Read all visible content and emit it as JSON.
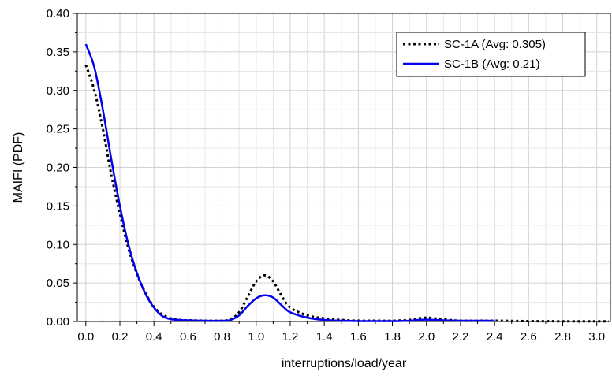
{
  "chart_data": {
    "type": "line",
    "title": "",
    "xlabel": "interruptions/load/year",
    "ylabel": "MAIFI (PDF)",
    "xlim": [
      -0.05,
      3.08
    ],
    "ylim": [
      0,
      0.4
    ],
    "grid": true,
    "legend_position": "top-right",
    "x_ticks": [
      "0.0",
      "0.2",
      "0.4",
      "0.6",
      "0.8",
      "1.0",
      "1.2",
      "1.4",
      "1.6",
      "1.8",
      "2.0",
      "2.2",
      "2.4",
      "2.6",
      "2.8",
      "3.0"
    ],
    "y_ticks": [
      "0.00",
      "0.05",
      "0.10",
      "0.15",
      "0.20",
      "0.25",
      "0.30",
      "0.35",
      "0.40"
    ],
    "series": [
      {
        "name": "SC-1A (Avg: 0.305)",
        "color": "#000000",
        "style": "dotted",
        "x": [
          0.0,
          0.05,
          0.1,
          0.15,
          0.2,
          0.25,
          0.3,
          0.35,
          0.4,
          0.45,
          0.5,
          0.55,
          0.6,
          0.7,
          0.8,
          0.85,
          0.9,
          0.95,
          1.0,
          1.05,
          1.1,
          1.15,
          1.2,
          1.3,
          1.4,
          1.5,
          1.6,
          1.7,
          1.8,
          1.9,
          1.95,
          2.0,
          2.05,
          2.1,
          2.2,
          2.4,
          2.6,
          2.8,
          3.0,
          3.07
        ],
        "y": [
          0.333,
          0.3,
          0.25,
          0.19,
          0.14,
          0.095,
          0.062,
          0.037,
          0.019,
          0.009,
          0.004,
          0.002,
          0.0015,
          0.001,
          0.001,
          0.003,
          0.012,
          0.032,
          0.052,
          0.06,
          0.052,
          0.033,
          0.018,
          0.008,
          0.004,
          0.002,
          0.001,
          0.001,
          0.001,
          0.002,
          0.004,
          0.005,
          0.004,
          0.003,
          0.001,
          0.001,
          0.0005,
          0.0003,
          0.0002,
          0.0002
        ]
      },
      {
        "name": "SC-1B (Avg: 0.21)",
        "color": "#0000ee",
        "style": "solid",
        "x": [
          0.0,
          0.05,
          0.1,
          0.15,
          0.2,
          0.25,
          0.3,
          0.35,
          0.4,
          0.45,
          0.5,
          0.55,
          0.6,
          0.7,
          0.8,
          0.85,
          0.9,
          0.95,
          1.0,
          1.05,
          1.1,
          1.15,
          1.2,
          1.3,
          1.4,
          1.5,
          1.6,
          1.7,
          1.8,
          1.9,
          1.95,
          2.0,
          2.05,
          2.1,
          2.2,
          2.3,
          2.4
        ],
        "y": [
          0.36,
          0.33,
          0.275,
          0.21,
          0.15,
          0.1,
          0.063,
          0.036,
          0.018,
          0.007,
          0.003,
          0.002,
          0.0015,
          0.001,
          0.001,
          0.002,
          0.008,
          0.02,
          0.03,
          0.034,
          0.031,
          0.021,
          0.012,
          0.005,
          0.002,
          0.001,
          0.0005,
          0.0005,
          0.0005,
          0.001,
          0.002,
          0.0025,
          0.002,
          0.0015,
          0.001,
          0.001,
          0.001
        ]
      }
    ]
  }
}
